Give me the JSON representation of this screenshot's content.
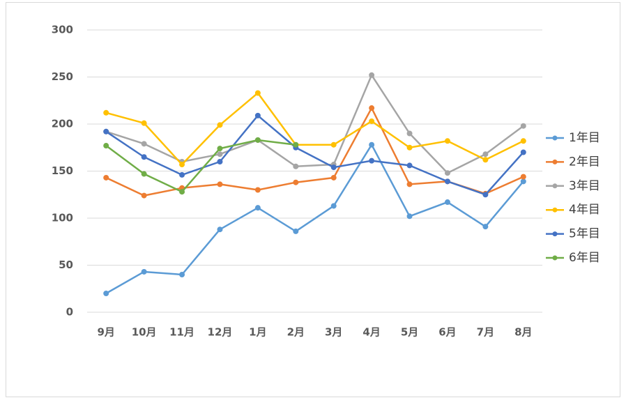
{
  "chart_data": {
    "type": "line",
    "categories": [
      "9月",
      "10月",
      "11月",
      "12月",
      "1月",
      "2月",
      "3月",
      "4月",
      "5月",
      "6月",
      "7月",
      "8月"
    ],
    "series": [
      {
        "name": "1年目",
        "color": "#5B9BD5",
        "values": [
          20,
          43,
          40,
          88,
          111,
          86,
          113,
          178,
          102,
          117,
          91,
          139
        ]
      },
      {
        "name": "2年目",
        "color": "#ED7D31",
        "values": [
          143,
          124,
          132,
          136,
          130,
          138,
          143,
          217,
          136,
          139,
          126,
          144
        ]
      },
      {
        "name": "3年目",
        "color": "#A5A5A5",
        "values": [
          192,
          179,
          160,
          168,
          183,
          155,
          157,
          252,
          190,
          148,
          168,
          198
        ]
      },
      {
        "name": "4年目",
        "color": "#FFC000",
        "values": [
          212,
          201,
          157,
          199,
          233,
          178,
          178,
          203,
          175,
          182,
          162,
          182
        ]
      },
      {
        "name": "5年目",
        "color": "#4472C4",
        "values": [
          192,
          165,
          146,
          160,
          209,
          175,
          154,
          161,
          156,
          139,
          125,
          170
        ]
      },
      {
        "name": "6年目",
        "color": "#70AD47",
        "values": [
          177,
          147,
          128,
          174,
          183,
          178,
          null,
          null,
          null,
          null,
          null,
          null
        ]
      }
    ],
    "ylim": [
      0,
      300
    ],
    "yticks": [
      0,
      50,
      100,
      150,
      200,
      250,
      300
    ],
    "grid": true,
    "legend": "right"
  }
}
